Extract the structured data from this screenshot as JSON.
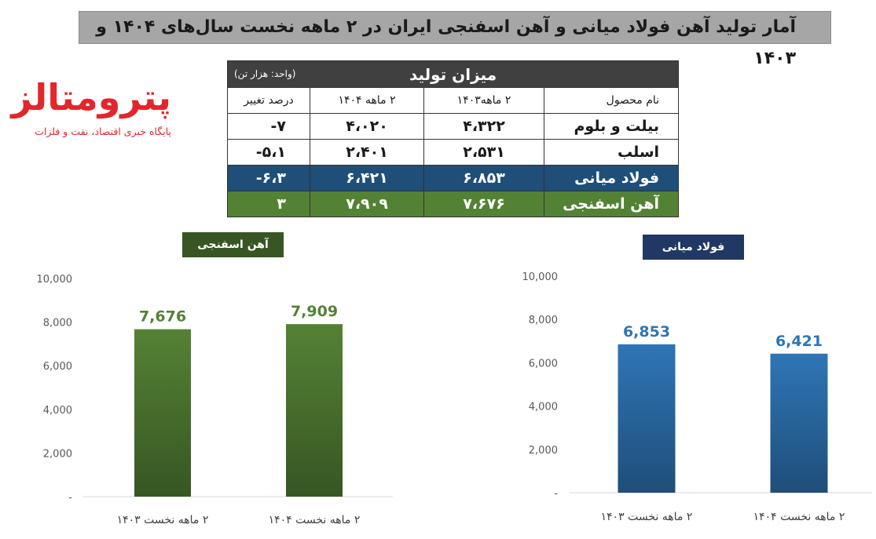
{
  "title": "آمار تولید آهن فولاد میانی و آهن اسفنجی ایران در ۲ ماهه نخست سال‌های ۱۴۰۴ و ۱۴۰۳",
  "logo": {
    "name": "پترومتالز",
    "tagline": "پایگاه خبری اقتصاد، نفت و فلزات"
  },
  "table": {
    "header": "میزان تولید",
    "unit": "(واحد: هزار تن)",
    "columns": [
      "نام محصول",
      "۲ ماهه۱۴۰۳",
      "۲ ماهه ۱۴۰۴",
      "درصد تغییر"
    ],
    "rows": [
      {
        "name": "بیلت و بلوم",
        "v1403": "۴،۳۲۲",
        "v1404": "۴،۰۲۰",
        "change": "۷-"
      },
      {
        "name": "اسلب",
        "v1403": "۲،۵۳۱",
        "v1404": "۲،۴۰۱",
        "change": "۵،۱-"
      },
      {
        "name": "فولاد میانی",
        "v1403": "۶،۸۵۳",
        "v1404": "۶،۴۲۱",
        "change": "۶،۳-"
      },
      {
        "name": "آهن اسفنجی",
        "v1403": "۷،۶۷۶",
        "v1404": "۷،۹۰۹",
        "change": "۳"
      }
    ],
    "colors": {
      "header": "#404040",
      "blue_row": "#1f4e79",
      "green_row": "#548235"
    }
  },
  "chart_data": [
    {
      "type": "bar",
      "title": "آهن اسفنجی",
      "categories": [
        "۲ ماهه نخست ۱۴۰۳",
        "۲ ماهه نخست ۱۴۰۴"
      ],
      "values": [
        7676,
        7909
      ],
      "data_labels": [
        "7,676",
        "7,909"
      ],
      "ylim": [
        0,
        10000
      ],
      "yticks": [
        "-",
        "2,000",
        "4,000",
        "6,000",
        "8,000",
        "10,000"
      ],
      "grid": false,
      "bar_color_top": "#548235",
      "bar_color_bottom": "#375623",
      "label_color": "#548235"
    },
    {
      "type": "bar",
      "title": "فولاد میانی",
      "categories": [
        "۲ ماهه نخست ۱۴۰۳",
        "۲ ماهه نخست ۱۴۰۴"
      ],
      "values": [
        6853,
        6421
      ],
      "data_labels": [
        "6,853",
        "6,421"
      ],
      "ylim": [
        0,
        10000
      ],
      "yticks": [
        "-",
        "2,000",
        "4,000",
        "6,000",
        "8,000",
        "10,000"
      ],
      "grid": false,
      "bar_color_top": "#2e75b6",
      "bar_color_bottom": "#1f4e79",
      "label_color": "#2e75b6"
    }
  ]
}
